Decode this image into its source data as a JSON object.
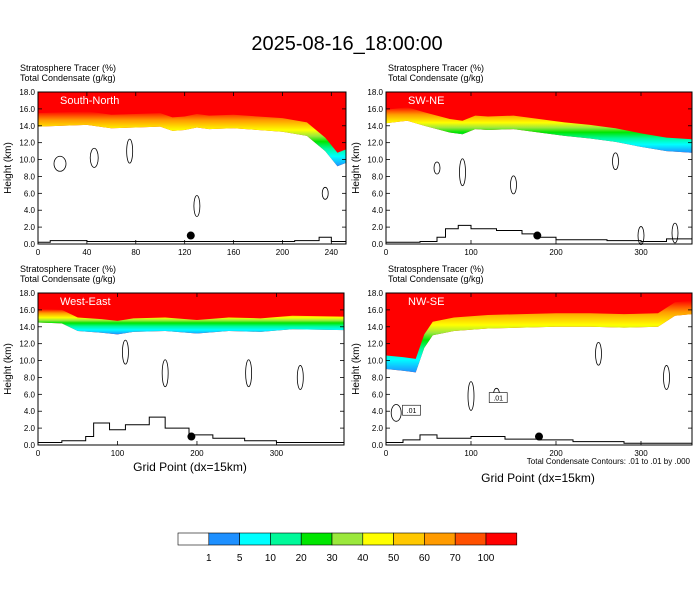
{
  "figure": {
    "title": "2025-08-16_18:00:00",
    "xlabel": "Grid Point (dx=15km)",
    "footnote": "Total Condensate Contours: .01 to .01 by .000"
  },
  "colorbar": {
    "labels": [
      "1",
      "5",
      "10",
      "20",
      "30",
      "40",
      "50",
      "60",
      "70",
      "100"
    ],
    "colors": [
      "#ffffff",
      "#1e90ff",
      "#00ffff",
      "#00fa9a",
      "#00e600",
      "#9be83c",
      "#ffff00",
      "#ffc800",
      "#ff9b00",
      "#ff5000",
      "#ff0000"
    ]
  },
  "chart_data": [
    {
      "type": "heatmap",
      "panel": "South-North",
      "label_line1": "Stratosphere Tracer   (%)",
      "label_line2": "Total Condensate   (g/kg)",
      "ylabel": "Height (km)",
      "xlim": [
        0,
        252
      ],
      "ylim": [
        0,
        18
      ],
      "xticks": [
        "0",
        "40",
        "80",
        "120",
        "160",
        "200",
        "240"
      ],
      "xtick_values": [
        0,
        40,
        80,
        120,
        160,
        200,
        240
      ],
      "yticks": [
        "0.0",
        "2.0",
        "4.0",
        "6.0",
        "8.0",
        "10.0",
        "12.0",
        "14.0",
        "16.0",
        "18.0"
      ],
      "tracer_base_km": [
        [
          0,
          13.9
        ],
        [
          20,
          14.0
        ],
        [
          40,
          14.1
        ],
        [
          60,
          13.7
        ],
        [
          80,
          13.8
        ],
        [
          100,
          13.9
        ],
        [
          110,
          13.4
        ],
        [
          120,
          13.5
        ],
        [
          130,
          13.8
        ],
        [
          140,
          13.6
        ],
        [
          160,
          13.7
        ],
        [
          180,
          13.5
        ],
        [
          200,
          13.3
        ],
        [
          220,
          12.8
        ],
        [
          235,
          11.0
        ],
        [
          245,
          9.2
        ],
        [
          252,
          9.6
        ]
      ],
      "terrain_km": [
        [
          0,
          0.2
        ],
        [
          10,
          0.4
        ],
        [
          40,
          0.3
        ],
        [
          100,
          0.3
        ],
        [
          180,
          0.3
        ],
        [
          210,
          0.4
        ],
        [
          230,
          0.8
        ],
        [
          240,
          0.3
        ],
        [
          252,
          0.2
        ]
      ],
      "marker": [
        125,
        1.0
      ]
    },
    {
      "type": "heatmap",
      "panel": "SW-NE",
      "label_line1": "Stratosphere Tracer   (%)",
      "label_line2": "Total Condensate   (g/kg)",
      "ylabel": "Height (km)",
      "xlim": [
        0,
        360
      ],
      "ylim": [
        0,
        18
      ],
      "xticks": [
        "0",
        "100",
        "200",
        "300"
      ],
      "xtick_values": [
        0,
        100,
        200,
        300
      ],
      "yticks": [
        "0.0",
        "2.0",
        "4.0",
        "6.0",
        "8.0",
        "10.0",
        "12.0",
        "14.0",
        "16.0",
        "18.0"
      ],
      "tracer_base_km": [
        [
          0,
          14.3
        ],
        [
          25,
          14.6
        ],
        [
          45,
          14.0
        ],
        [
          60,
          13.6
        ],
        [
          75,
          13.2
        ],
        [
          90,
          13.0
        ],
        [
          105,
          13.6
        ],
        [
          120,
          13.5
        ],
        [
          150,
          13.6
        ],
        [
          180,
          13.2
        ],
        [
          210,
          12.8
        ],
        [
          240,
          12.5
        ],
        [
          270,
          12.1
        ],
        [
          300,
          11.5
        ],
        [
          330,
          11.0
        ],
        [
          360,
          10.8
        ]
      ],
      "terrain_km": [
        [
          0,
          0.2
        ],
        [
          40,
          0.3
        ],
        [
          60,
          0.8
        ],
        [
          70,
          1.8
        ],
        [
          85,
          2.2
        ],
        [
          100,
          1.8
        ],
        [
          130,
          1.6
        ],
        [
          160,
          1.2
        ],
        [
          180,
          0.8
        ],
        [
          200,
          0.5
        ],
        [
          260,
          0.4
        ],
        [
          300,
          0.3
        ],
        [
          330,
          0.6
        ],
        [
          360,
          0.8
        ]
      ],
      "marker": [
        178,
        1.0
      ]
    },
    {
      "type": "heatmap",
      "panel": "West-East",
      "label_line1": "Stratosphere Tracer   (%)",
      "label_line2": "Total Condensate   (g/kg)",
      "ylabel": "Height (km)",
      "xlim": [
        0,
        385
      ],
      "ylim": [
        0,
        18
      ],
      "xticks": [
        "0",
        "100",
        "200",
        "300"
      ],
      "xtick_values": [
        0,
        100,
        200,
        300
      ],
      "yticks": [
        "0.0",
        "2.0",
        "4.0",
        "6.0",
        "8.0",
        "10.0",
        "12.0",
        "14.0",
        "16.0",
        "18.0"
      ],
      "tracer_base_km": [
        [
          0,
          14.5
        ],
        [
          30,
          14.4
        ],
        [
          50,
          13.5
        ],
        [
          80,
          13.3
        ],
        [
          100,
          13.1
        ],
        [
          120,
          13.4
        ],
        [
          160,
          13.5
        ],
        [
          200,
          13.2
        ],
        [
          240,
          13.5
        ],
        [
          280,
          13.4
        ],
        [
          320,
          13.7
        ],
        [
          385,
          13.6
        ]
      ],
      "terrain_km": [
        [
          0,
          0.3
        ],
        [
          30,
          0.5
        ],
        [
          60,
          1.0
        ],
        [
          70,
          2.6
        ],
        [
          90,
          1.8
        ],
        [
          110,
          2.4
        ],
        [
          140,
          3.3
        ],
        [
          160,
          2.0
        ],
        [
          190,
          1.2
        ],
        [
          220,
          0.8
        ],
        [
          260,
          0.5
        ],
        [
          300,
          0.3
        ],
        [
          385,
          0.2
        ]
      ],
      "marker": [
        193,
        1.0
      ]
    },
    {
      "type": "heatmap",
      "panel": "NW-SE",
      "label_line1": "Stratosphere Tracer   (%)",
      "label_line2": "Total Condensate   (g/kg)",
      "ylabel": "Height (km)",
      "xlim": [
        0,
        360
      ],
      "ylim": [
        0,
        18
      ],
      "xticks": [
        "0",
        "100",
        "200",
        "300"
      ],
      "xtick_values": [
        0,
        100,
        200,
        300
      ],
      "yticks": [
        "0.0",
        "2.0",
        "4.0",
        "6.0",
        "8.0",
        "10.0",
        "12.0",
        "14.0",
        "16.0",
        "18.0"
      ],
      "tracer_base_km": [
        [
          0,
          9.0
        ],
        [
          20,
          8.8
        ],
        [
          35,
          8.6
        ],
        [
          45,
          11.5
        ],
        [
          55,
          13.0
        ],
        [
          80,
          13.5
        ],
        [
          120,
          13.8
        ],
        [
          160,
          13.9
        ],
        [
          200,
          14.0
        ],
        [
          240,
          14.0
        ],
        [
          280,
          13.9
        ],
        [
          320,
          14.0
        ],
        [
          340,
          15.3
        ],
        [
          360,
          15.5
        ]
      ],
      "terrain_km": [
        [
          0,
          0.3
        ],
        [
          20,
          0.6
        ],
        [
          40,
          1.2
        ],
        [
          60,
          0.8
        ],
        [
          100,
          1.0
        ],
        [
          140,
          0.7
        ],
        [
          180,
          0.6
        ],
        [
          220,
          0.4
        ],
        [
          280,
          0.2
        ],
        [
          360,
          0.2
        ]
      ],
      "marker": [
        180,
        1.0
      ],
      "contour_labels": [
        ".01",
        ".01"
      ]
    }
  ]
}
